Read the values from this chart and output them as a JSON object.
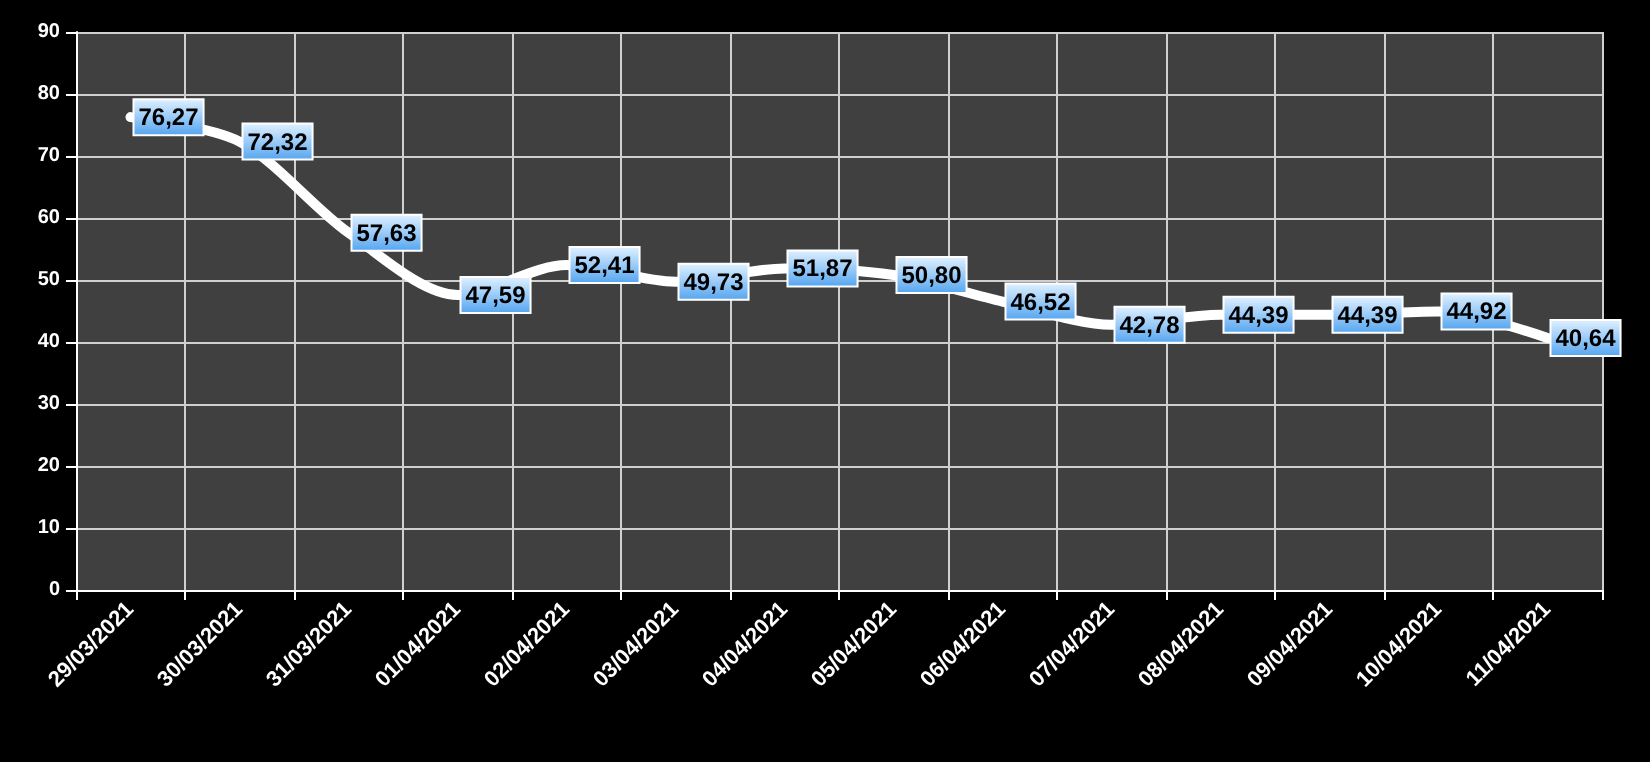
{
  "chart_data": {
    "type": "line",
    "categories": [
      "29/03/2021",
      "30/03/2021",
      "31/03/2021",
      "01/04/2021",
      "02/04/2021",
      "03/04/2021",
      "04/04/2021",
      "05/04/2021",
      "06/04/2021",
      "07/04/2021",
      "08/04/2021",
      "09/04/2021",
      "10/04/2021",
      "11/04/2021"
    ],
    "series": [
      {
        "color": "#ffffff",
        "values": [
          76.27,
          72.32,
          57.63,
          47.59,
          52.41,
          49.73,
          51.87,
          50.8,
          46.52,
          42.78,
          44.39,
          44.39,
          44.92,
          40.64
        ]
      }
    ],
    "value_labels": [
      "76,27",
      "72,32",
      "57,63",
      "47,59",
      "52,41",
      "49,73",
      "51,87",
      "50,80",
      "46,52",
      "42,78",
      "44,39",
      "44,39",
      "44,92",
      "40,64"
    ],
    "ylim": [
      0,
      90
    ],
    "yticks": [
      0,
      10,
      20,
      30,
      40,
      50,
      60,
      70,
      80,
      90
    ],
    "grid": true,
    "marker": "none"
  }
}
